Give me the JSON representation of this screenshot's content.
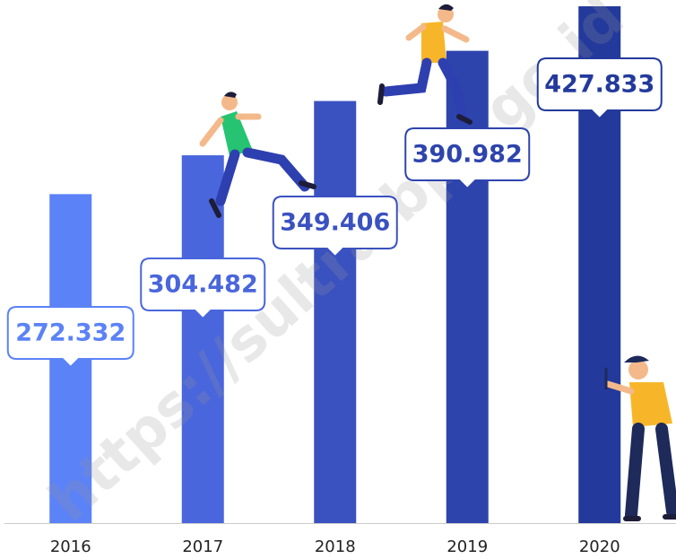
{
  "chart_data": {
    "type": "bar",
    "categories": [
      "2016",
      "2017",
      "2018",
      "2019",
      "2020"
    ],
    "values": [
      272332,
      304482,
      349406,
      390982,
      427833
    ],
    "value_labels": [
      "272.332",
      "304.482",
      "349.406",
      "390.982",
      "427.833"
    ],
    "colors": [
      "#5b82f7",
      "#4a66dc",
      "#3a51c0",
      "#2e44ad",
      "#233a9c"
    ]
  },
  "watermark": "https://sultra.bps.go.id"
}
